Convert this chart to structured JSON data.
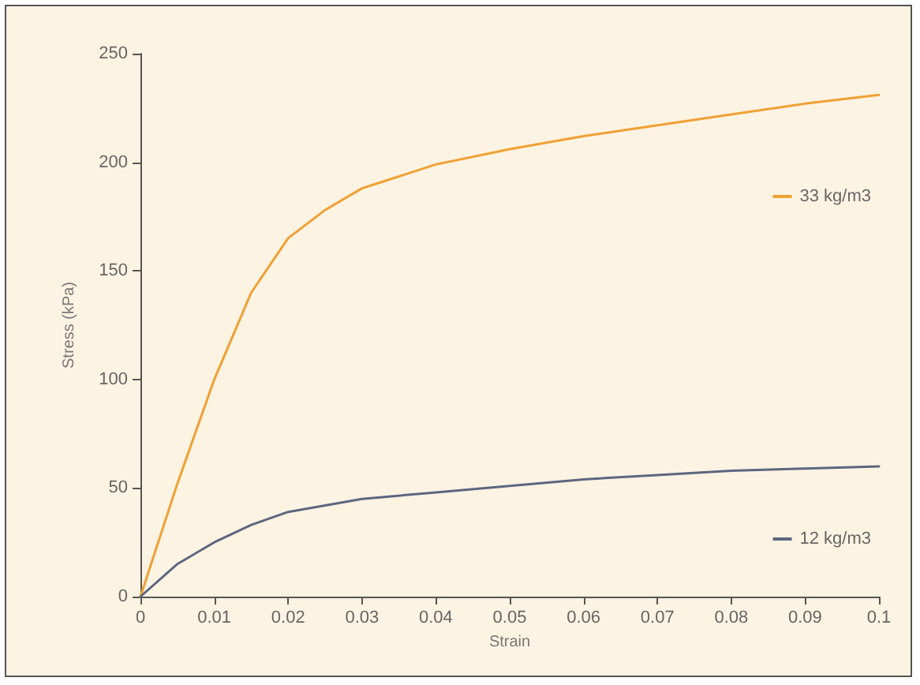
{
  "chart_data": {
    "type": "line",
    "xlabel": "Strain",
    "ylabel": "Stress (kPa)",
    "xlim": [
      0,
      0.1
    ],
    "ylim": [
      0,
      250
    ],
    "xticks": [
      0,
      0.01,
      0.02,
      0.03,
      0.04,
      0.05,
      0.06,
      0.07,
      0.08,
      0.09,
      0.1
    ],
    "yticks": [
      0,
      50,
      100,
      150,
      200,
      250
    ],
    "grid": false,
    "legend": "right",
    "marker": "none",
    "line_style": "solid",
    "series": [
      {
        "name": "33 kg/m3",
        "color": "#f0a033",
        "x": [
          0,
          0.005,
          0.01,
          0.015,
          0.02,
          0.025,
          0.03,
          0.04,
          0.05,
          0.06,
          0.07,
          0.08,
          0.09,
          0.1
        ],
        "values": [
          0,
          52,
          100,
          140,
          165,
          178,
          188,
          199,
          206,
          212,
          217,
          222,
          227,
          231
        ]
      },
      {
        "name": "12 kg/m3",
        "color": "#5c6680",
        "x": [
          0,
          0.005,
          0.01,
          0.015,
          0.02,
          0.03,
          0.04,
          0.05,
          0.06,
          0.07,
          0.08,
          0.09,
          0.1
        ],
        "values": [
          0,
          15,
          25,
          33,
          39,
          45,
          48,
          51,
          54,
          56,
          58,
          59,
          60
        ]
      }
    ]
  }
}
